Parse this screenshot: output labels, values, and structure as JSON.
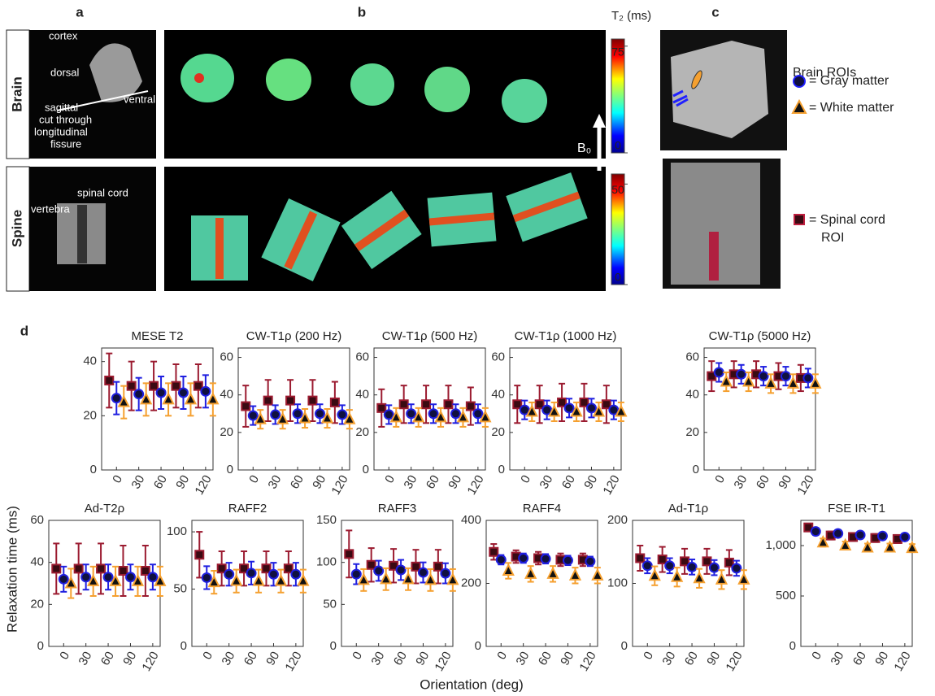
{
  "figure": {
    "panel_labels": [
      "a",
      "b",
      "c",
      "d"
    ],
    "row_labels": [
      "Brain",
      "Spine"
    ],
    "brain_annotations": [
      "cortex",
      "dorsal",
      "ventral",
      "sagittal",
      "cut through",
      "longitudinal",
      "fissure"
    ],
    "spine_annotations": [
      "vertebra",
      "spinal cord"
    ],
    "colorbar_title": "T₂ (ms)",
    "field_label": "B₀",
    "colorbars": [
      {
        "lim": [
          0,
          80
        ],
        "ticks": [
          0,
          75
        ]
      },
      {
        "lim": [
          0,
          55
        ],
        "ticks": [
          0,
          50
        ]
      }
    ],
    "legend_title": "Brain ROIs",
    "legend": [
      "= Gray matter",
      "= White matter",
      "= Spinal cord",
      "ROI"
    ],
    "y_label": "Relaxation time (ms)",
    "x_label": "Orientation (deg)"
  },
  "chart_data": [
    {
      "type": "errorbar",
      "title": "MESE T2",
      "x": [
        0,
        30,
        60,
        90,
        120
      ],
      "xlim": [
        -20,
        130
      ],
      "xticks": [
        0,
        30,
        60,
        90,
        120
      ],
      "ylim": [
        0,
        45
      ],
      "yticks": [
        0,
        20,
        40
      ],
      "series": [
        {
          "color": "#9b1b30",
          "marker": "square",
          "values": [
            33,
            31,
            31,
            31,
            31
          ],
          "errors": [
            10,
            9,
            9,
            8,
            8
          ]
        },
        {
          "color": "#1f1fe0",
          "marker": "circle",
          "values": [
            26.5,
            28,
            28.5,
            28.5,
            29
          ],
          "errors": [
            6,
            6,
            6,
            6,
            6
          ]
        },
        {
          "color": "#f5a030",
          "marker": "triangle",
          "values": [
            25,
            26,
            26,
            26,
            26
          ],
          "errors": [
            6,
            6,
            6,
            6,
            6
          ]
        }
      ]
    },
    {
      "type": "errorbar",
      "title": "CW-T1ρ (200 Hz)",
      "x": [
        0,
        30,
        60,
        90,
        120
      ],
      "xlim": [
        -20,
        130
      ],
      "xticks": [
        0,
        30,
        60,
        90,
        120
      ],
      "ylim": [
        0,
        65
      ],
      "yticks": [
        0,
        20,
        40,
        60
      ],
      "series": [
        {
          "color": "#9b1b30",
          "marker": "square",
          "values": [
            34,
            37,
            37,
            37,
            36
          ],
          "errors": [
            11,
            11,
            11,
            11,
            11
          ]
        },
        {
          "color": "#1f1fe0",
          "marker": "circle",
          "values": [
            29,
            29.5,
            30,
            30,
            29.5
          ],
          "errors": [
            5,
            5,
            5,
            5,
            5
          ]
        },
        {
          "color": "#f5a030",
          "marker": "triangle",
          "values": [
            27,
            27,
            27.5,
            27.5,
            27
          ],
          "errors": [
            5,
            5,
            5,
            5,
            5
          ]
        }
      ]
    },
    {
      "type": "errorbar",
      "title": "CW-T1ρ (500 Hz)",
      "x": [
        0,
        30,
        60,
        90,
        120
      ],
      "xlim": [
        -20,
        130
      ],
      "xticks": [
        0,
        30,
        60,
        90,
        120
      ],
      "ylim": [
        0,
        65
      ],
      "yticks": [
        0,
        20,
        40,
        60
      ],
      "series": [
        {
          "color": "#9b1b30",
          "marker": "square",
          "values": [
            33,
            35,
            35,
            35,
            34
          ],
          "errors": [
            10,
            10,
            10,
            10,
            10
          ]
        },
        {
          "color": "#1f1fe0",
          "marker": "circle",
          "values": [
            29.5,
            30,
            30,
            30,
            30
          ],
          "errors": [
            5,
            5,
            5,
            5,
            5
          ]
        },
        {
          "color": "#f5a030",
          "marker": "triangle",
          "values": [
            28,
            28,
            28,
            28,
            28
          ],
          "errors": [
            5,
            5,
            5,
            5,
            5
          ]
        }
      ]
    },
    {
      "type": "errorbar",
      "title": "CW-T1ρ (1000 Hz)",
      "x": [
        0,
        30,
        60,
        90,
        120
      ],
      "xlim": [
        -20,
        130
      ],
      "xticks": [
        0,
        30,
        60,
        90,
        120
      ],
      "ylim": [
        0,
        65
      ],
      "yticks": [
        0,
        20,
        40,
        60
      ],
      "series": [
        {
          "color": "#9b1b30",
          "marker": "square",
          "values": [
            35,
            35,
            36,
            36,
            35
          ],
          "errors": [
            10,
            10,
            10,
            10,
            10
          ]
        },
        {
          "color": "#1f1fe0",
          "marker": "circle",
          "values": [
            32,
            32,
            33,
            33,
            32
          ],
          "errors": [
            5,
            5,
            5,
            5,
            5
          ]
        },
        {
          "color": "#f5a030",
          "marker": "triangle",
          "values": [
            31,
            31,
            31,
            31,
            31
          ],
          "errors": [
            5,
            5,
            5,
            5,
            5
          ]
        }
      ]
    },
    {
      "type": "errorbar",
      "title": "CW-T1ρ (5000 Hz)",
      "x": [
        0,
        30,
        60,
        90,
        120
      ],
      "xlim": [
        -20,
        130
      ],
      "xticks": [
        0,
        30,
        60,
        90,
        120
      ],
      "ylim": [
        0,
        65
      ],
      "yticks": [
        0,
        20,
        40,
        60
      ],
      "series": [
        {
          "color": "#9b1b30",
          "marker": "square",
          "values": [
            50,
            51,
            51,
            50,
            49
          ],
          "errors": [
            8,
            7,
            7,
            7,
            7
          ]
        },
        {
          "color": "#1f1fe0",
          "marker": "circle",
          "values": [
            52,
            51,
            50,
            50,
            49
          ],
          "errors": [
            5,
            5,
            5,
            5,
            5
          ]
        },
        {
          "color": "#f5a030",
          "marker": "triangle",
          "values": [
            47,
            47,
            46,
            46,
            46
          ],
          "errors": [
            5,
            5,
            5,
            5,
            5
          ]
        }
      ]
    },
    {
      "type": "errorbar",
      "title": "Ad-T2ρ",
      "x": [
        0,
        30,
        60,
        90,
        120
      ],
      "xlim": [
        -20,
        130
      ],
      "xticks": [
        0,
        30,
        60,
        90,
        120
      ],
      "ylim": [
        0,
        60
      ],
      "yticks": [
        0,
        20,
        40,
        60
      ],
      "series": [
        {
          "color": "#9b1b30",
          "marker": "square",
          "values": [
            37,
            37,
            37,
            36,
            36
          ],
          "errors": [
            12,
            12,
            12,
            12,
            12
          ]
        },
        {
          "color": "#1f1fe0",
          "marker": "circle",
          "values": [
            32,
            33,
            33,
            33,
            33
          ],
          "errors": [
            6,
            6,
            6,
            6,
            6
          ]
        },
        {
          "color": "#f5a030",
          "marker": "triangle",
          "values": [
            30,
            31,
            31,
            31,
            31
          ],
          "errors": [
            7,
            7,
            7,
            7,
            7
          ]
        }
      ]
    },
    {
      "type": "errorbar",
      "title": "RAFF2",
      "x": [
        0,
        30,
        60,
        90,
        120
      ],
      "xlim": [
        -20,
        130
      ],
      "xticks": [
        0,
        30,
        60,
        90,
        120
      ],
      "ylim": [
        0,
        110
      ],
      "yticks": [
        0,
        50,
        100
      ],
      "series": [
        {
          "color": "#9b1b30",
          "marker": "square",
          "values": [
            80,
            68,
            68,
            68,
            68
          ],
          "errors": [
            20,
            15,
            15,
            15,
            15
          ]
        },
        {
          "color": "#1f1fe0",
          "marker": "circle",
          "values": [
            60,
            63,
            64,
            63,
            63
          ],
          "errors": [
            10,
            10,
            10,
            10,
            10
          ]
        },
        {
          "color": "#f5a030",
          "marker": "triangle",
          "values": [
            56,
            57,
            57,
            57,
            57
          ],
          "errors": [
            10,
            10,
            10,
            10,
            10
          ]
        }
      ]
    },
    {
      "type": "errorbar",
      "title": "RAFF3",
      "x": [
        0,
        30,
        60,
        90,
        120
      ],
      "xlim": [
        -20,
        130
      ],
      "xticks": [
        0,
        30,
        60,
        90,
        120
      ],
      "ylim": [
        0,
        150
      ],
      "yticks": [
        0,
        50,
        100,
        150
      ],
      "series": [
        {
          "color": "#9b1b30",
          "marker": "square",
          "values": [
            110,
            97,
            96,
            95,
            95
          ],
          "errors": [
            28,
            20,
            20,
            20,
            20
          ]
        },
        {
          "color": "#1f1fe0",
          "marker": "circle",
          "values": [
            86,
            90,
            91,
            88,
            87
          ],
          "errors": [
            12,
            12,
            12,
            12,
            12
          ]
        },
        {
          "color": "#f5a030",
          "marker": "triangle",
          "values": [
            79,
            80,
            80,
            79,
            79
          ],
          "errors": [
            13,
            13,
            13,
            13,
            13
          ]
        }
      ]
    },
    {
      "type": "errorbar",
      "title": "RAFF4",
      "x": [
        0,
        30,
        60,
        90,
        120
      ],
      "xlim": [
        -20,
        130
      ],
      "xticks": [
        0,
        30,
        60,
        90,
        120
      ],
      "ylim": [
        0,
        400
      ],
      "yticks": [
        0,
        200,
        400
      ],
      "series": [
        {
          "color": "#9b1b30",
          "marker": "square",
          "values": [
            300,
            285,
            280,
            275,
            275
          ],
          "errors": [
            25,
            20,
            20,
            20,
            20
          ]
        },
        {
          "color": "#1f1fe0",
          "marker": "circle",
          "values": [
            275,
            280,
            278,
            273,
            270
          ],
          "errors": [
            15,
            15,
            15,
            15,
            15
          ]
        },
        {
          "color": "#f5a030",
          "marker": "triangle",
          "values": [
            240,
            230,
            230,
            225,
            225
          ],
          "errors": [
            25,
            25,
            25,
            25,
            25
          ]
        }
      ]
    },
    {
      "type": "errorbar",
      "title": "Ad-T1ρ",
      "x": [
        0,
        30,
        60,
        90,
        120
      ],
      "xlim": [
        -20,
        130
      ],
      "xticks": [
        0,
        30,
        60,
        90,
        120
      ],
      "ylim": [
        0,
        200
      ],
      "yticks": [
        0,
        100,
        200
      ],
      "series": [
        {
          "color": "#9b1b30",
          "marker": "square",
          "values": [
            140,
            138,
            135,
            135,
            133
          ],
          "errors": [
            20,
            20,
            20,
            20,
            20
          ]
        },
        {
          "color": "#1f1fe0",
          "marker": "circle",
          "values": [
            128,
            128,
            126,
            125,
            124
          ],
          "errors": [
            12,
            12,
            12,
            12,
            12
          ]
        },
        {
          "color": "#f5a030",
          "marker": "triangle",
          "values": [
            112,
            110,
            108,
            106,
            106
          ],
          "errors": [
            15,
            15,
            15,
            15,
            15
          ]
        }
      ]
    },
    {
      "type": "errorbar",
      "title": "FSE IR-T1",
      "x": [
        0,
        30,
        60,
        90,
        120
      ],
      "xlim": [
        -20,
        130
      ],
      "xticks": [
        0,
        30,
        60,
        90,
        120
      ],
      "ylim": [
        0,
        1250
      ],
      "yticks": [
        0,
        500,
        {
          "value": 1000,
          "label": "1,000"
        }
      ],
      "series": [
        {
          "color": "#9b1b30",
          "marker": "square",
          "values": [
            1180,
            1100,
            1085,
            1075,
            1065
          ],
          "errors": [
            30,
            40,
            40,
            40,
            40
          ]
        },
        {
          "color": "#1f1fe0",
          "marker": "circle",
          "values": [
            1140,
            1120,
            1105,
            1095,
            1085
          ],
          "errors": [
            35,
            35,
            35,
            35,
            35
          ]
        },
        {
          "color": "#f5a030",
          "marker": "triangle",
          "values": [
            1030,
            1000,
            980,
            980,
            975
          ],
          "errors": [
            40,
            40,
            40,
            40,
            40
          ]
        }
      ]
    }
  ]
}
